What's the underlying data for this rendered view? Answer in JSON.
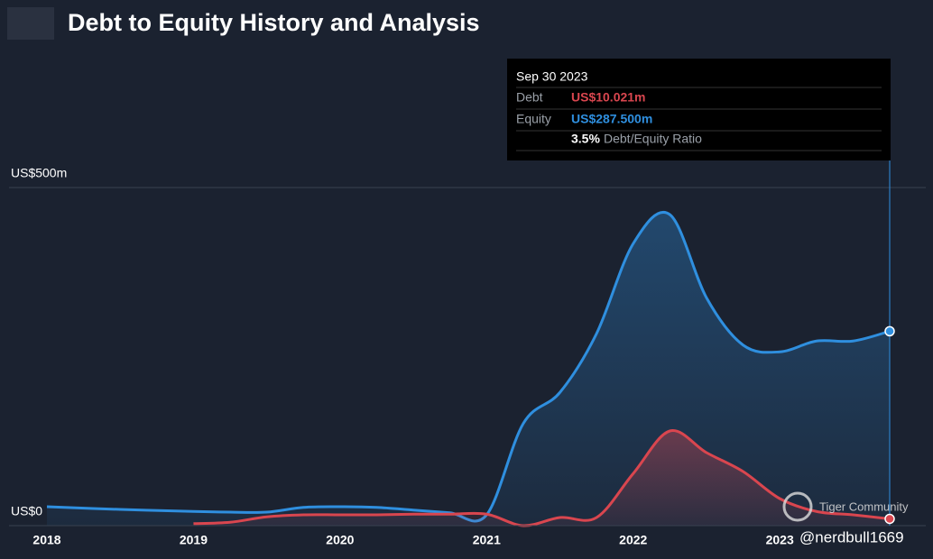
{
  "chart_data": {
    "type": "line",
    "title": "Debt to Equity History and Analysis",
    "x": [
      2018,
      2018.5,
      2019,
      2019.25,
      2019.5,
      2019.75,
      2020,
      2020.25,
      2020.5,
      2020.75,
      2021,
      2021.25,
      2021.5,
      2021.75,
      2022,
      2022.25,
      2022.5,
      2022.75,
      2023,
      2023.25,
      2023.5,
      2023.75
    ],
    "series": [
      {
        "name": "Equity",
        "color": "#2f8fdf",
        "values": [
          28,
          24,
          21,
          20,
          20,
          27,
          28,
          27,
          23,
          19,
          16,
          151,
          197,
          284,
          417,
          460,
          337,
          267,
          257,
          273,
          273,
          287.5
        ]
      },
      {
        "name": "Debt",
        "color": "#d9464f",
        "values": [
          null,
          null,
          3,
          5,
          13,
          16,
          16,
          16,
          17,
          17,
          17,
          0,
          12,
          12,
          77,
          140,
          108,
          80,
          40,
          21,
          16,
          10.021
        ]
      }
    ],
    "xlim": [
      2018,
      2023.75
    ],
    "xticks": [
      2018,
      2019,
      2020,
      2021,
      2022,
      2023
    ],
    "ylim": [
      0,
      500
    ],
    "yticks": [
      {
        "value": 0,
        "label": "US$0"
      },
      {
        "value": 500,
        "label": "US$500m"
      }
    ],
    "grid": true,
    "tooltip": {
      "date": "Sep 30 2023",
      "rows": [
        {
          "label": "Debt",
          "value": "US$10.021m"
        },
        {
          "label": "Equity",
          "value": "US$287.500m"
        }
      ],
      "ratio": "3.5%",
      "ratio_label": "Debt/Equity Ratio"
    },
    "watermark": "Tiger Community",
    "handle": "@nerdbull1669"
  }
}
